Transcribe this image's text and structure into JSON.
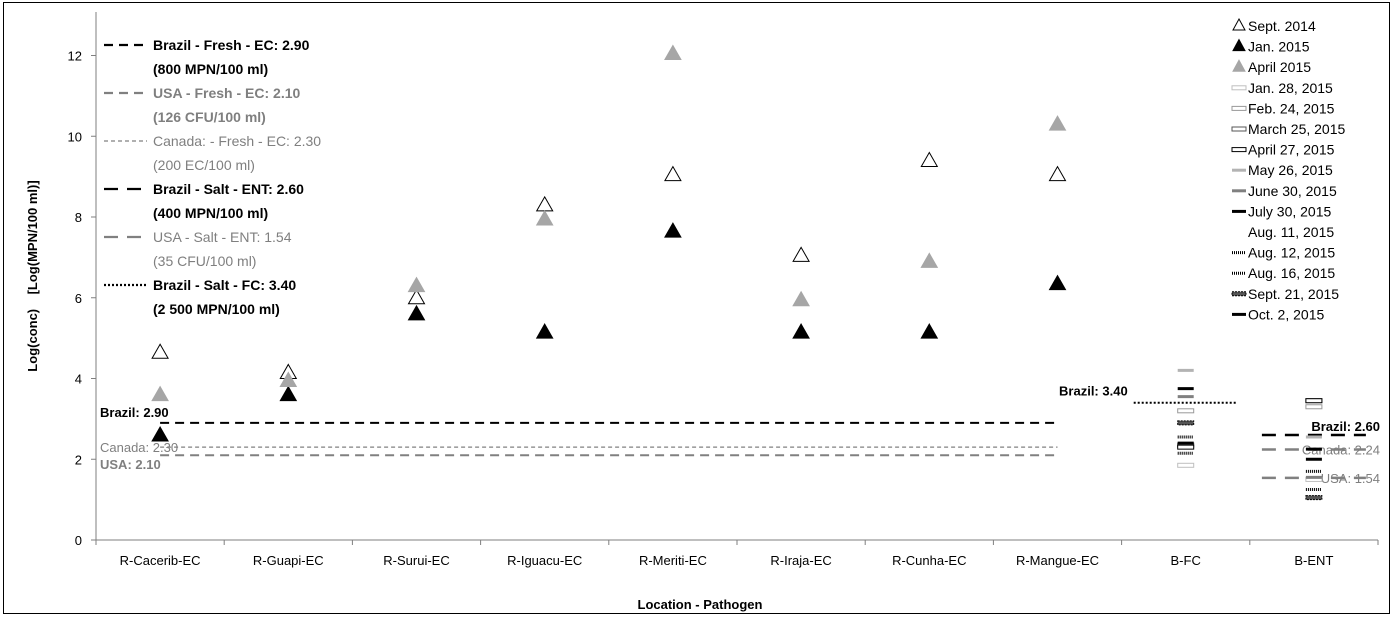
{
  "chart_data": {
    "type": "scatter",
    "xlabel": "Location - Pathogen",
    "ylabel": "Log(conc)    [Log(MPN/100 ml)]",
    "ylim": [
      0,
      13
    ],
    "yticks": [
      0,
      2,
      4,
      6,
      8,
      10,
      12
    ],
    "grid": false,
    "legend_position": "right",
    "categories": [
      "R-Cacerib-EC",
      "R-Guapi-EC",
      "R-Surui-EC",
      "R-Iguacu-EC",
      "R-Meriti-EC",
      "R-Iraja-EC",
      "R-Cunha-EC",
      "R-Mangue-EC",
      "B-FC",
      "B-ENT"
    ],
    "series": [
      {
        "name": "Sept. 2014",
        "marker": "open-triangle",
        "color": "#000000",
        "values": [
          4.65,
          4.15,
          6.0,
          8.3,
          9.05,
          7.05,
          9.4,
          9.05,
          null,
          null
        ]
      },
      {
        "name": "Jan. 2015",
        "marker": "filled-triangle",
        "color": "#000000",
        "values": [
          2.6,
          3.6,
          5.6,
          5.15,
          7.65,
          5.15,
          5.15,
          6.35,
          null,
          null
        ]
      },
      {
        "name": "April 2015",
        "marker": "filled-triangle",
        "color": "#a6a6a6",
        "values": [
          3.6,
          3.95,
          6.3,
          7.95,
          12.05,
          5.95,
          6.9,
          10.3,
          null,
          null
        ]
      },
      {
        "name": "Jan. 28, 2015",
        "marker": "open-box",
        "color": "#bfbfbf",
        "values": [
          null,
          null,
          null,
          null,
          null,
          null,
          null,
          null,
          1.85,
          1.5
        ]
      },
      {
        "name": "Feb. 24, 2015",
        "marker": "open-box",
        "color": "#999999",
        "values": [
          null,
          null,
          null,
          null,
          null,
          null,
          null,
          null,
          3.2,
          3.3
        ]
      },
      {
        "name": "March 25, 2015",
        "marker": "open-box",
        "color": "#555555",
        "values": [
          null,
          null,
          null,
          null,
          null,
          null,
          null,
          null,
          2.35,
          3.45
        ]
      },
      {
        "name": "April 27, 2015",
        "marker": "open-box",
        "color": "#000000",
        "values": [
          null,
          null,
          null,
          null,
          null,
          null,
          null,
          null,
          2.3,
          3.45
        ]
      },
      {
        "name": "May 26, 2015",
        "marker": "dash",
        "color": "#b3b3b3",
        "values": [
          null,
          null,
          null,
          null,
          null,
          null,
          null,
          null,
          4.2,
          2.55
        ]
      },
      {
        "name": "June 30, 2015",
        "marker": "dash",
        "color": "#808080",
        "values": [
          null,
          null,
          null,
          null,
          null,
          null,
          null,
          null,
          3.55,
          1.55
        ]
      },
      {
        "name": "July 30, 2015",
        "marker": "dash",
        "color": "#000000",
        "values": [
          null,
          null,
          null,
          null,
          null,
          null,
          null,
          null,
          3.75,
          2.0
        ]
      },
      {
        "name": "Aug. 11, 2015",
        "marker": "none",
        "color": "#000000",
        "values": [
          null,
          null,
          null,
          null,
          null,
          null,
          null,
          null,
          null,
          null
        ]
      },
      {
        "name": "Aug. 12, 2015",
        "marker": "dotted-dash",
        "color": "#000000",
        "values": [
          null,
          null,
          null,
          null,
          null,
          null,
          null,
          null,
          2.15,
          1.25
        ]
      },
      {
        "name": "Aug. 16, 2015",
        "marker": "dotted-dash",
        "color": "#000000",
        "values": [
          null,
          null,
          null,
          null,
          null,
          null,
          null,
          null,
          2.55,
          1.7
        ]
      },
      {
        "name": "Sept. 21, 2015",
        "marker": "hatched-box",
        "color": "#000000",
        "values": [
          null,
          null,
          null,
          null,
          null,
          null,
          null,
          null,
          2.9,
          1.05
        ]
      },
      {
        "name": "Oct. 2, 2015",
        "marker": "dash",
        "color": "#000000",
        "values": [
          null,
          null,
          null,
          null,
          null,
          null,
          null,
          null,
          2.4,
          2.25
        ]
      }
    ],
    "reference_lines": [
      {
        "name": "Brazil - Fresh - EC: 2.90",
        "note": "(800 MPN/100 ml)",
        "value": 2.9,
        "from": "R-Cacerib-EC",
        "to": "R-Mangue-EC",
        "color": "#000000",
        "style": "dash",
        "label": "Brazil: 2.90",
        "label_side": "left",
        "bold": true
      },
      {
        "name": "USA - Fresh - EC: 2.10",
        "note": "(126 CFU/100 ml)",
        "value": 2.1,
        "from": "R-Cacerib-EC",
        "to": "R-Mangue-EC",
        "color": "#808080",
        "style": "dash",
        "label": "USA: 2.10",
        "label_side": "left",
        "bold": true
      },
      {
        "name": "Canada: - Fresh - EC: 2.30",
        "note": "(200 EC/100 ml)",
        "value": 2.3,
        "from": "R-Cacerib-EC",
        "to": "R-Mangue-EC",
        "color": "#808080",
        "style": "fine-dash",
        "label": "Canada: 2.30",
        "label_side": "left",
        "bold": false
      },
      {
        "name": "Brazil - Salt - ENT: 2.60",
        "note": "(400 MPN/100 ml)",
        "value": 2.6,
        "from": "B-ENT",
        "to": "B-ENT",
        "color": "#000000",
        "style": "long-dash",
        "label": "Brazil: 2.60",
        "label_side": "right",
        "bold": true
      },
      {
        "name": "USA - Salt - ENT: 1.54",
        "note": "(35 CFU/100 ml)",
        "value": 1.54,
        "from": "B-ENT",
        "to": "B-ENT",
        "color": "#808080",
        "style": "long-dash",
        "label": "USA: 1.54",
        "label_side": "right",
        "bold": false
      },
      {
        "name": "Brazil - Salt - FC: 3.40",
        "note": "(2 500 MPN/100 ml)",
        "value": 3.4,
        "from": "B-FC",
        "to": "B-FC",
        "color": "#000000",
        "style": "dot",
        "label": "Brazil: 3.40",
        "label_side": "left",
        "bold": true
      },
      {
        "name": "",
        "note": "",
        "value": 2.24,
        "from": "B-ENT",
        "to": "B-ENT",
        "color": "#808080",
        "style": "long-dash",
        "label": "Canada: 2.24",
        "label_side": "right",
        "bold": false
      }
    ]
  }
}
